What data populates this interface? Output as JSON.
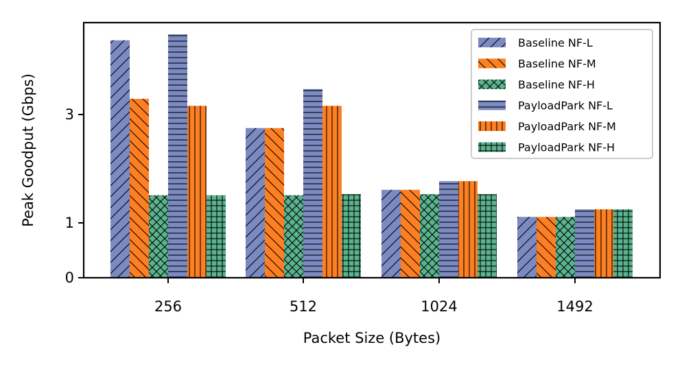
{
  "chart_data": {
    "type": "bar",
    "title": "",
    "xlabel": "Packet Size (Bytes)",
    "ylabel": "Peak Goodput (Gbps)",
    "categories": [
      "256",
      "512",
      "1024",
      "1492"
    ],
    "yticks": [
      "0",
      "1",
      "3"
    ],
    "ylim": [
      0,
      4.7
    ],
    "grid": false,
    "legend_position": "top-right",
    "series": [
      {
        "name": "Baseline NF-L",
        "values": [
          4.37,
          2.75,
          1.61,
          1.11
        ],
        "color": "#7b8ac1",
        "hatch": "slash"
      },
      {
        "name": "Baseline NF-M",
        "values": [
          3.29,
          2.75,
          1.61,
          1.11
        ],
        "color": "#fd7f22",
        "hatch": "backslash"
      },
      {
        "name": "Baseline NF-H",
        "values": [
          1.51,
          1.51,
          1.53,
          1.11
        ],
        "color": "#5ab38e",
        "hatch": "crosshatch"
      },
      {
        "name": "PayloadPark NF-L",
        "values": [
          4.48,
          3.47,
          1.77,
          1.25
        ],
        "color": "#7b8ac1",
        "hatch": "horizontal"
      },
      {
        "name": "PayloadPark NF-M",
        "values": [
          3.16,
          3.16,
          1.77,
          1.25
        ],
        "color": "#fd7f22",
        "hatch": "vertical"
      },
      {
        "name": "PayloadPark NF-H",
        "values": [
          1.51,
          1.53,
          1.53,
          1.25
        ],
        "color": "#5ab38e",
        "hatch": "grid"
      }
    ]
  }
}
